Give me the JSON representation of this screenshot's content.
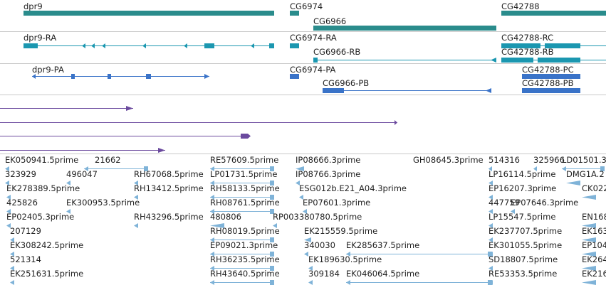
{
  "genes": {
    "dpr9": "dpr9",
    "cg6974": "CG6974",
    "cg6966": "CG6966",
    "cg42788": "CG42788",
    "color": "#2a8c8c"
  },
  "transcripts_ra": {
    "dpr9_ra": "dpr9-RA",
    "cg6974_ra": "CG6974-RA",
    "cg6966_rb": "CG6966-RB",
    "cg42788_rc": "CG42788-RC",
    "cg42788_rb": "CG42788-RB",
    "color": "#1b97b0"
  },
  "transcripts_pa": {
    "dpr9_pa": "dpr9-PA",
    "cg6974_pa": "CG6974-PA",
    "cg6966_pb": "CG6966-PB",
    "cg42788_pc": "CG42788-PC",
    "cg42788_pb": "CG42788-PB",
    "color": "#3a73c8"
  },
  "purple_track": {
    "color": "#6b4a9e"
  },
  "est_track": {
    "color": "#7fb3d8",
    "labels": [
      "EK050941.5prime",
      "21662",
      "RE57609.5prime",
      "IP08666.3prime",
      "GH08645.3prime",
      "514316",
      "325966",
      "LD01501.3",
      "323929",
      "496047",
      "RH67068.5prime",
      "LP01731.5prime",
      "IP08766.3prime",
      "LP16114.5prime",
      "DMG1A.2",
      "EK278389.5prime",
      "RH13412.5prime",
      "RH58133.5prime",
      "ESG012b.E21_A04.3prime",
      "EP16207.3prime",
      "CK022",
      "425826",
      "EK300953.5prime",
      "RH08761.5prime",
      "EP07601.3prime",
      "447759",
      "EP07646.3prime",
      "EP02405.3prime",
      "RH43296.5prime",
      "480806",
      "RP003380780.5prime",
      "LP15547.5prime",
      "EN168",
      "207129",
      "RH08019.5prime",
      "EK215559.5prime",
      "EK237707.5prime",
      "EK163",
      "EK308242.5prime",
      "EP09021.3prime",
      "340030",
      "EK285637.5prime",
      "EK301055.5prime",
      "EP104",
      "521314",
      "RH36235.5prime",
      "EK189630.5prime",
      "SD18807.5prime",
      "EK264",
      "EK251631.5prime",
      "RH43640.5prime",
      "309184",
      "EK046064.5prime",
      "RE53353.5prime",
      "EK216"
    ]
  }
}
